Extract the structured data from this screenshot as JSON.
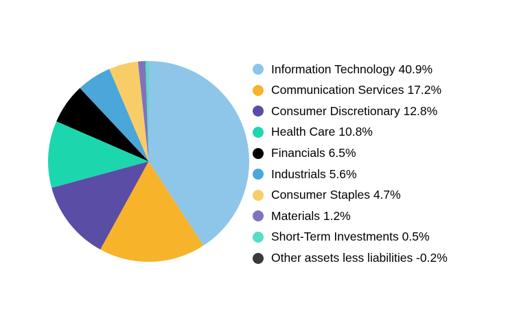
{
  "chart_data": {
    "type": "pie",
    "title": "",
    "legend_position": "right",
    "start_angle_deg": -90,
    "direction": "clockwise",
    "unit": "%",
    "labels": [
      "Information Technology",
      "Communication Services",
      "Consumer Discretionary",
      "Health Care",
      "Financials",
      "Industrials",
      "Consumer Staples",
      "Materials",
      "Short-Term Investments",
      "Other assets less liabilities"
    ],
    "values": [
      40.9,
      17.2,
      12.8,
      10.8,
      6.5,
      5.6,
      4.7,
      1.2,
      0.5,
      -0.2
    ],
    "display_values": [
      "40.9%",
      "17.2%",
      "12.8%",
      "10.8%",
      "6.5%",
      "5.6%",
      "4.7%",
      "1.2%",
      "0.5%",
      "-0.2%"
    ],
    "colors": [
      "#8EC6E9",
      "#F7B32A",
      "#5A4DA5",
      "#1CD7AE",
      "#000000",
      "#4BA6D9",
      "#F8CD68",
      "#8172BE",
      "#57DCC8",
      "#3A3A3A"
    ]
  }
}
